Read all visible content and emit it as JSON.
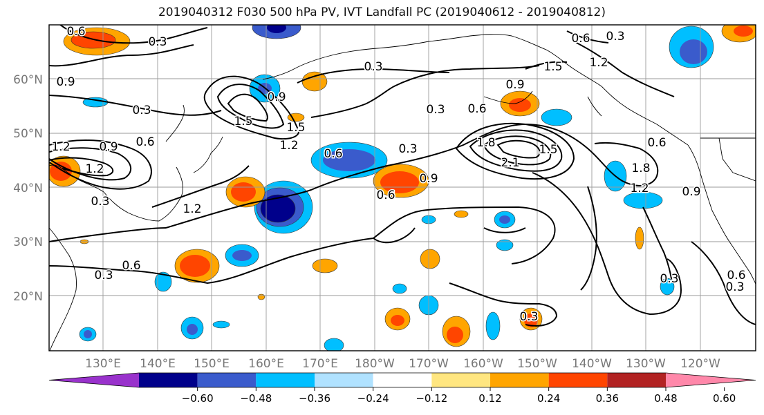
{
  "title": "2019040312 F030 500 hPa PV, IVT Landfall PC (2019040612 - 2019040812)",
  "lat_labels": [
    "60°N",
    "50°N",
    "40°N",
    "30°N",
    "20°N"
  ],
  "lon_labels": [
    "130°E",
    "140°E",
    "150°E",
    "160°E",
    "170°E",
    "180°W",
    "170°W",
    "160°W",
    "150°W",
    "140°W",
    "130°W",
    "120°W"
  ],
  "contour_labels": [
    "0.6",
    "0.3",
    "0.9",
    "0.3",
    "0.6",
    "0.3",
    "0.9",
    "1.5",
    "1.2",
    "0.3",
    "1.5",
    "1.5",
    "0.9",
    "1.2",
    "0.6",
    "0.6",
    "0.3",
    "0.6",
    "1.2",
    "0.9",
    "1.2",
    "1.8",
    "2.1",
    "1.5",
    "0.6",
    "0.9",
    "1.8",
    "1.2",
    "0.3",
    "0.6",
    "0.9",
    "1.2",
    "0.6",
    "0.3",
    "0.3",
    "0.3",
    "0.6",
    "0.3",
    "0.3"
  ],
  "colorbar": {
    "tick_labels": [
      "−0.60",
      "−0.48",
      "−0.36",
      "−0.24",
      "−0.12",
      "0.12",
      "0.24",
      "0.36",
      "0.48",
      "0.60"
    ],
    "colors": [
      "#9932cc",
      "#00008b",
      "#3a5bcc",
      "#00bfff",
      "#b0e2ff",
      "#ffffff",
      "#ffe680",
      "#ffa500",
      "#ff4500",
      "#b22222",
      "#ff88aa"
    ]
  }
}
